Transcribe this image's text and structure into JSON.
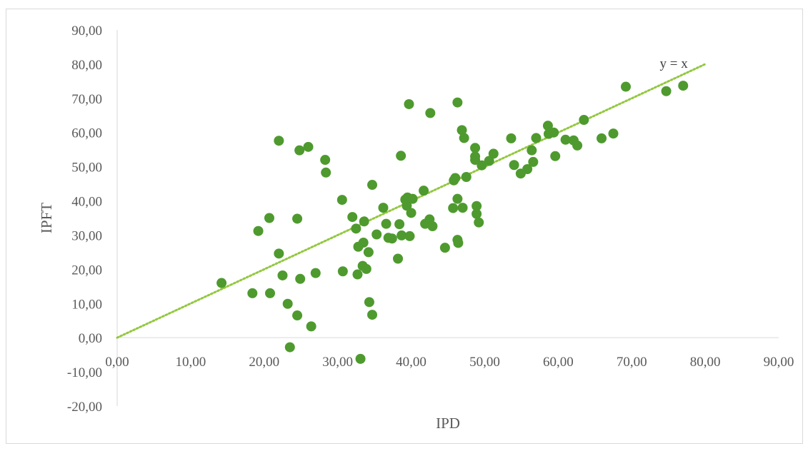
{
  "chart_data": {
    "type": "scatter",
    "title": "",
    "xlabel": "IPD",
    "ylabel": "IPFT",
    "xlim": [
      0,
      90
    ],
    "ylim": [
      -20,
      90
    ],
    "x_ticks": [
      "0,00",
      "10,00",
      "20,00",
      "30,00",
      "40,00",
      "50,00",
      "60,00",
      "70,00",
      "80,00",
      "90,00"
    ],
    "y_ticks": [
      "90,00",
      "80,00",
      "70,00",
      "60,00",
      "50,00",
      "40,00",
      "30,00",
      "20,00",
      "10,00",
      "0,00",
      "-10,00",
      "-20,00"
    ],
    "grid": false,
    "legend": "none",
    "marker_color": "#4e9a2e",
    "reference_line": {
      "label": "y = x",
      "from": [
        0,
        0
      ],
      "to": [
        80,
        80
      ],
      "color": "#92c83e",
      "style": "dotted"
    },
    "points": [
      [
        14.2,
        16.0
      ],
      [
        18.4,
        13.0
      ],
      [
        19.2,
        31.2
      ],
      [
        20.7,
        35.0
      ],
      [
        20.8,
        13.0
      ],
      [
        22.0,
        57.6
      ],
      [
        22.0,
        24.6
      ],
      [
        22.5,
        18.2
      ],
      [
        23.2,
        9.9
      ],
      [
        23.5,
        -2.8
      ],
      [
        24.5,
        34.8
      ],
      [
        24.5,
        6.5
      ],
      [
        24.8,
        54.8
      ],
      [
        24.9,
        17.2
      ],
      [
        26.0,
        55.8
      ],
      [
        26.4,
        3.3
      ],
      [
        27.0,
        18.9
      ],
      [
        28.3,
        52.0
      ],
      [
        28.4,
        48.3
      ],
      [
        30.6,
        40.3
      ],
      [
        30.7,
        19.4
      ],
      [
        32.0,
        35.3
      ],
      [
        32.5,
        31.9
      ],
      [
        32.7,
        18.5
      ],
      [
        32.8,
        26.6
      ],
      [
        33.1,
        -6.2
      ],
      [
        33.4,
        21.0
      ],
      [
        33.5,
        27.8
      ],
      [
        33.6,
        34.0
      ],
      [
        33.9,
        20.1
      ],
      [
        34.2,
        25.0
      ],
      [
        34.3,
        10.4
      ],
      [
        34.7,
        6.7
      ],
      [
        34.7,
        44.7
      ],
      [
        35.3,
        30.2
      ],
      [
        36.2,
        38.0
      ],
      [
        36.6,
        33.3
      ],
      [
        36.9,
        29.2
      ],
      [
        37.4,
        29.0
      ],
      [
        38.2,
        23.1
      ],
      [
        38.4,
        33.2
      ],
      [
        38.6,
        53.2
      ],
      [
        38.7,
        29.9
      ],
      [
        39.2,
        40.4
      ],
      [
        39.4,
        38.6
      ],
      [
        39.5,
        41.0
      ],
      [
        39.7,
        68.3
      ],
      [
        39.8,
        29.7
      ],
      [
        40.0,
        36.5
      ],
      [
        40.2,
        40.6
      ],
      [
        41.7,
        43.0
      ],
      [
        41.9,
        33.3
      ],
      [
        42.5,
        34.6
      ],
      [
        42.6,
        65.7
      ],
      [
        42.9,
        32.6
      ],
      [
        44.6,
        26.3
      ],
      [
        45.7,
        37.9
      ],
      [
        45.8,
        46.0
      ],
      [
        46.0,
        46.7
      ],
      [
        46.3,
        68.8
      ],
      [
        46.3,
        28.6
      ],
      [
        46.4,
        27.7
      ],
      [
        46.3,
        40.6
      ],
      [
        46.9,
        60.7
      ],
      [
        47.0,
        38.0
      ],
      [
        47.2,
        58.4
      ],
      [
        47.5,
        47.0
      ],
      [
        48.7,
        55.5
      ],
      [
        48.7,
        53.0
      ],
      [
        48.7,
        52.0
      ],
      [
        48.9,
        38.5
      ],
      [
        48.9,
        36.2
      ],
      [
        49.2,
        33.7
      ],
      [
        49.6,
        50.4
      ],
      [
        50.6,
        51.7
      ],
      [
        51.2,
        53.8
      ],
      [
        53.6,
        58.3
      ],
      [
        54.0,
        50.5
      ],
      [
        54.9,
        48.0
      ],
      [
        55.8,
        49.3
      ],
      [
        56.4,
        54.8
      ],
      [
        56.6,
        51.4
      ],
      [
        57.0,
        58.4
      ],
      [
        58.6,
        62.0
      ],
      [
        58.7,
        59.6
      ],
      [
        59.4,
        60.0
      ],
      [
        59.6,
        53.1
      ],
      [
        61.0,
        57.9
      ],
      [
        62.1,
        57.7
      ],
      [
        62.6,
        56.2
      ],
      [
        63.5,
        63.7
      ],
      [
        65.9,
        58.3
      ],
      [
        67.5,
        59.7
      ],
      [
        69.2,
        73.4
      ],
      [
        74.7,
        72.1
      ],
      [
        77.0,
        73.7
      ]
    ]
  }
}
